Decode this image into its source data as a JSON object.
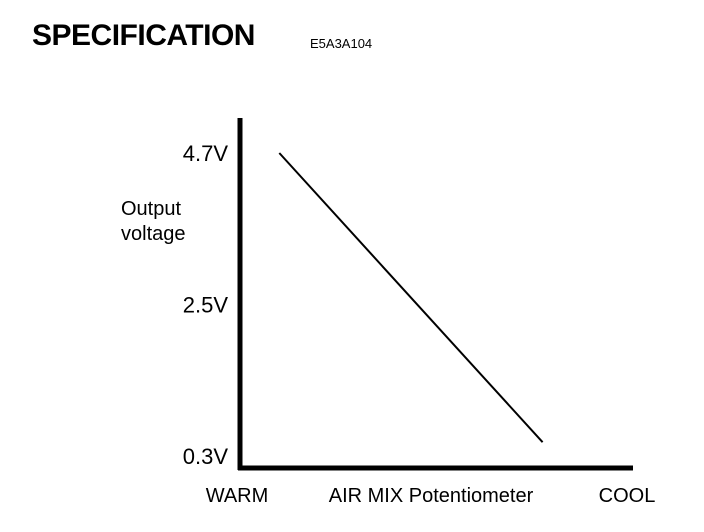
{
  "header": {
    "title": "SPECIFICATION",
    "code": "E5A3A104"
  },
  "chart_data": {
    "type": "line",
    "title": "",
    "xlabel": "AIR MIX Potentiometer",
    "ylabel": [
      "Output",
      "voltage"
    ],
    "x_tick_labels": [
      "WARM",
      "COOL"
    ],
    "y_tick_labels": [
      "4.7V",
      "2.5V",
      "0.3V"
    ],
    "y_tick_values": [
      4.7,
      2.5,
      0.3
    ],
    "ylim": [
      0.3,
      4.7
    ],
    "grid": false,
    "series": [
      {
        "x": [
          0.1,
          0.77
        ],
        "y": [
          4.7,
          0.5
        ]
      }
    ],
    "colors": {
      "line": "#000000",
      "axis": "#000000"
    }
  }
}
